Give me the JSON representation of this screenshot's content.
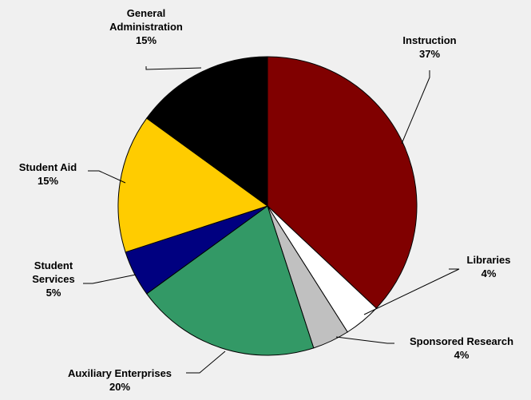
{
  "chart_data": {
    "type": "pie",
    "title": "",
    "slices": [
      {
        "label": [
          "Instruction"
        ],
        "value": 37,
        "display": "37%",
        "color": "#800000"
      },
      {
        "label": [
          "Libraries"
        ],
        "value": 4,
        "display": "4%",
        "color": "#ffffff"
      },
      {
        "label": [
          "Sponsored Research"
        ],
        "value": 4,
        "display": "4%",
        "color": "#c0c0c0"
      },
      {
        "label": [
          "Auxiliary Enterprises"
        ],
        "value": 20,
        "display": "20%",
        "color": "#339966"
      },
      {
        "label": [
          "Student",
          "Services"
        ],
        "value": 5,
        "display": "5%",
        "color": "#000080"
      },
      {
        "label": [
          "Student Aid"
        ],
        "value": 15,
        "display": "15%",
        "color": "#ffcc00"
      },
      {
        "label": [
          "General",
          "Administration"
        ],
        "value": 15,
        "display": "15%",
        "color": "#000000"
      }
    ],
    "legend": "none",
    "background": "#f0f0f0"
  }
}
